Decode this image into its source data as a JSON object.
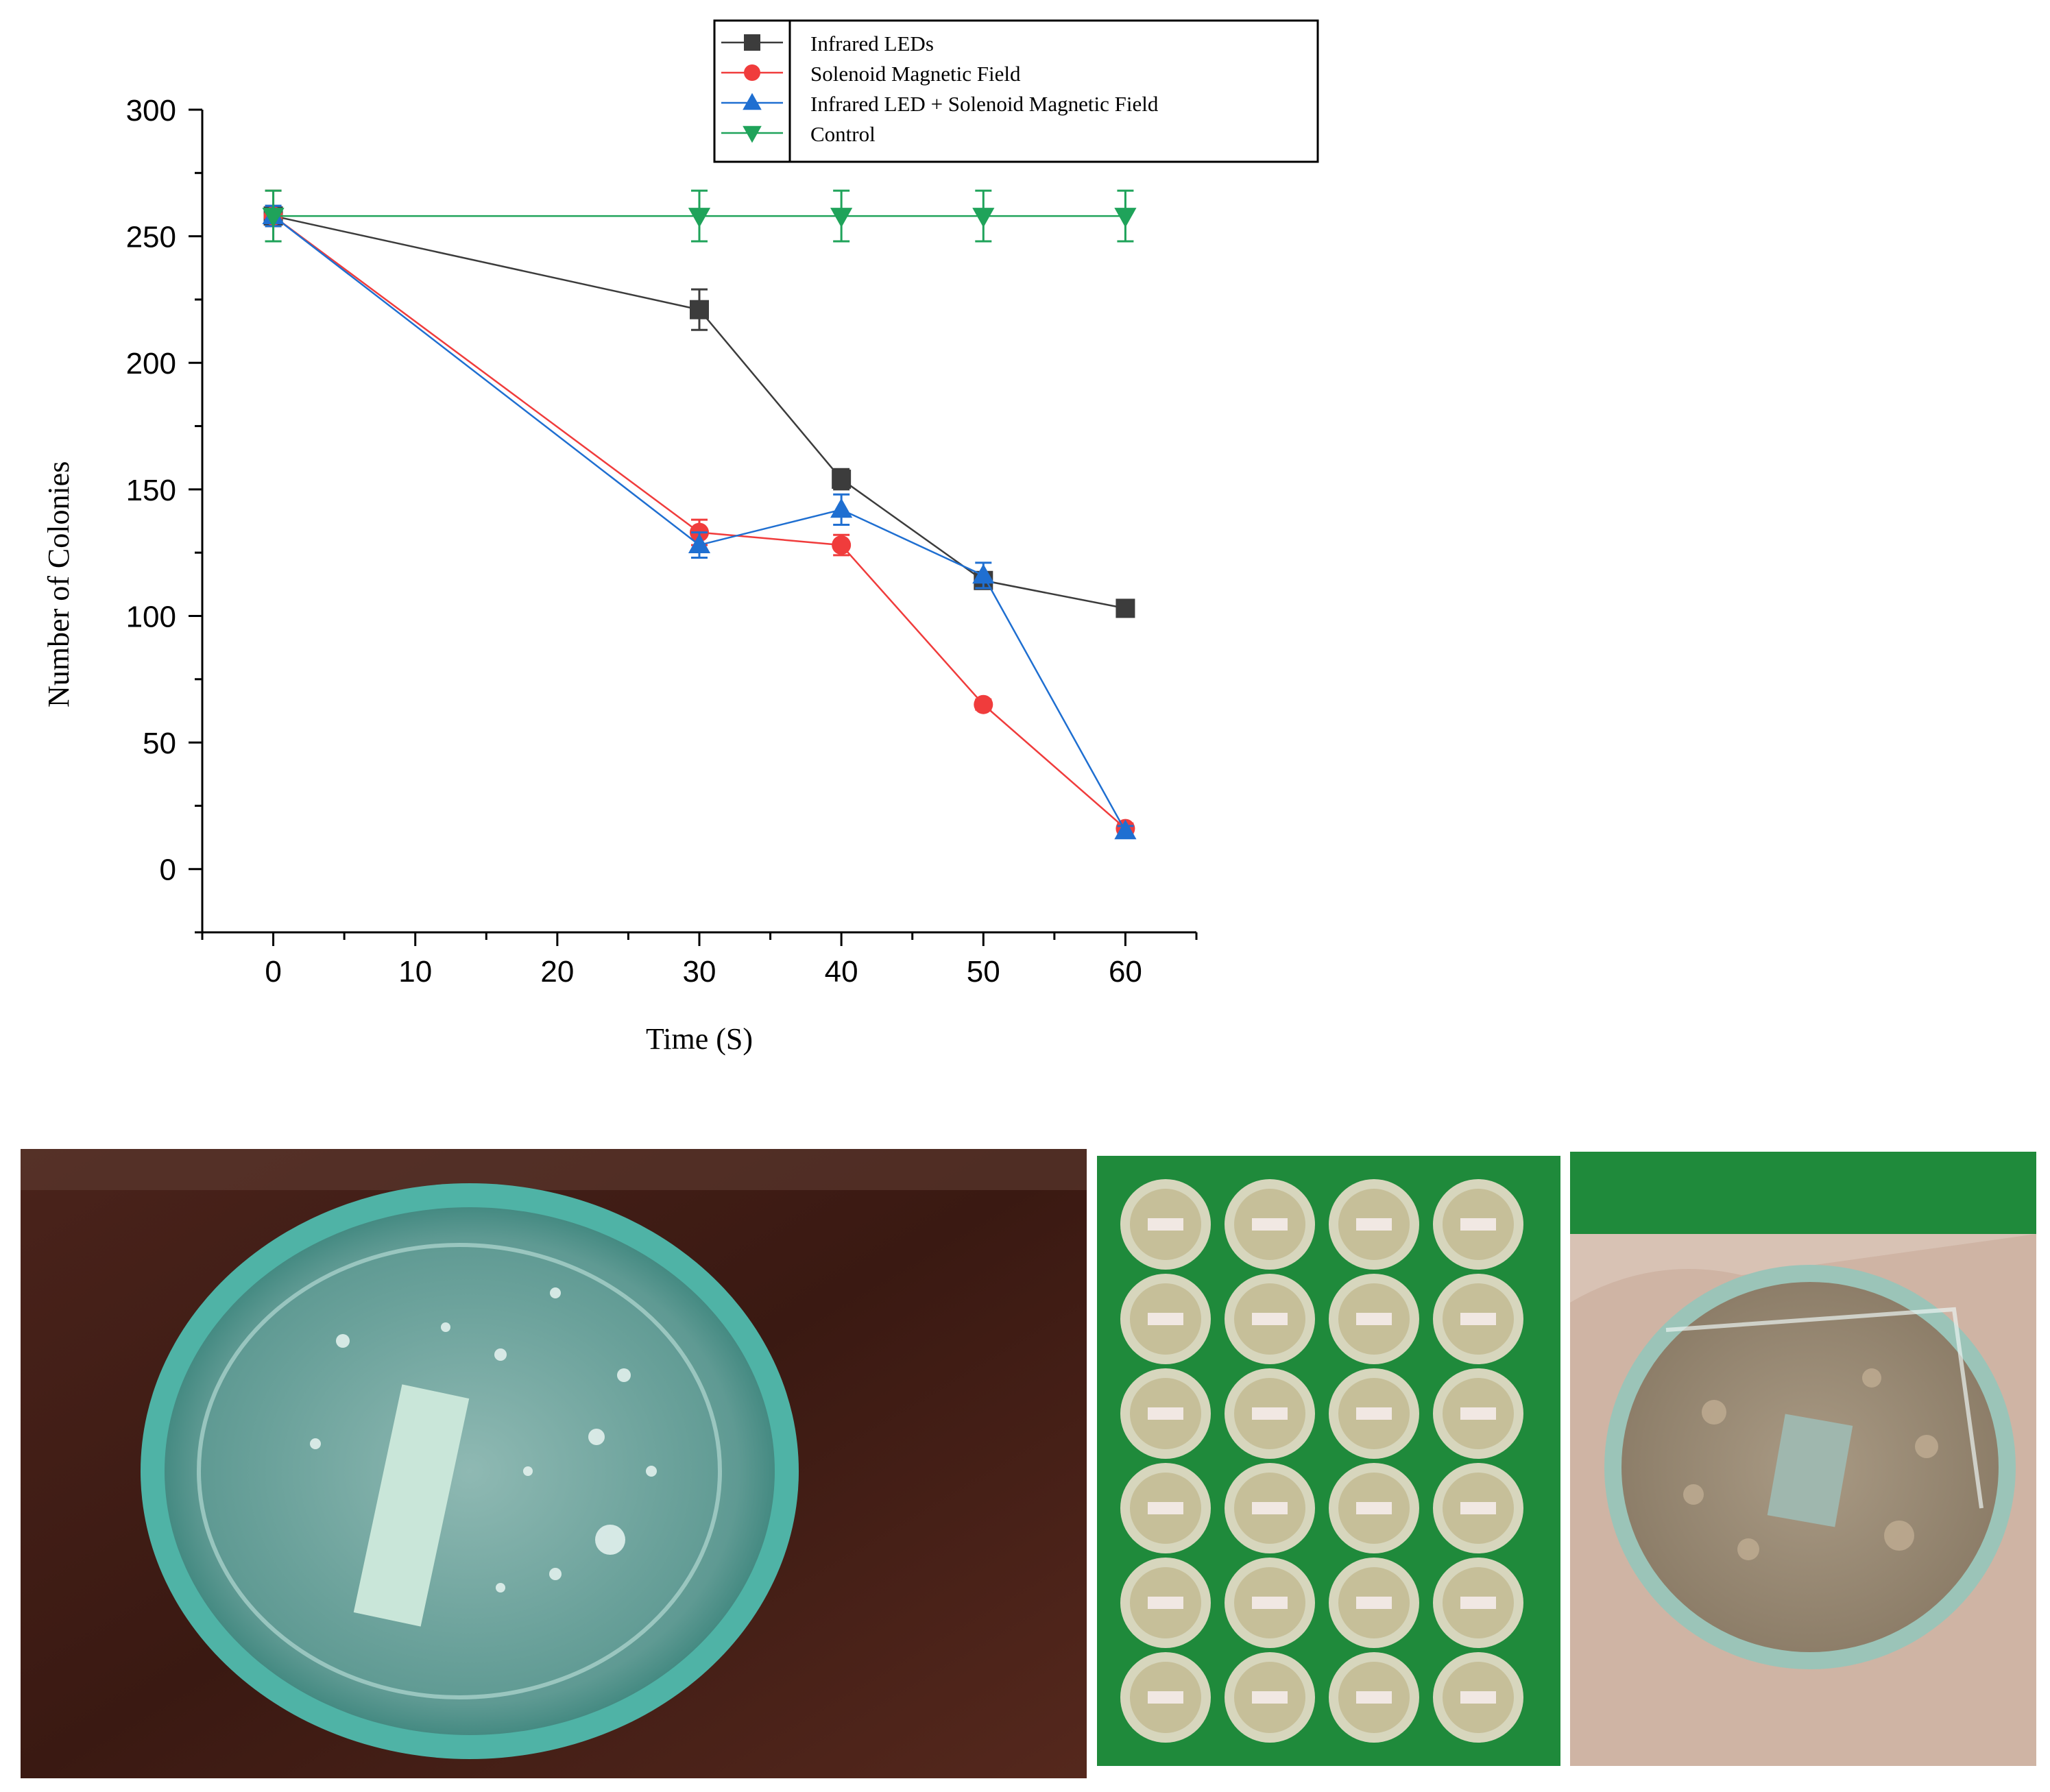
{
  "chart_data": {
    "type": "line",
    "xlabel": "Time (S)",
    "ylabel": "Number of Colonies",
    "xlim": [
      -5,
      65
    ],
    "ylim": [
      -25,
      300
    ],
    "xticks": [
      0,
      10,
      20,
      30,
      40,
      50,
      60
    ],
    "yticks": [
      0,
      50,
      100,
      150,
      200,
      250,
      300
    ],
    "legend_position": "top-right",
    "grid": false,
    "series": [
      {
        "name": "Infrared LEDs",
        "color": "#3c3c3c",
        "marker": "square",
        "x": [
          0,
          30,
          40,
          50,
          60
        ],
        "y": [
          258,
          221,
          154,
          114,
          103
        ],
        "err": [
          4,
          8,
          4,
          3,
          3
        ]
      },
      {
        "name": "Solenoid Magnetic Field",
        "color": "#f03c3c",
        "marker": "circle",
        "x": [
          0,
          30,
          40,
          50,
          60
        ],
        "y": [
          258,
          133,
          128,
          65,
          16
        ],
        "err": [
          10,
          5,
          4,
          2,
          2
        ]
      },
      {
        "name": "Infrared LED + Solenoid Magnetic Field",
        "color": "#1f6fd1",
        "marker": "triangle-up",
        "x": [
          0,
          30,
          40,
          50,
          60
        ],
        "y": [
          258,
          128,
          142,
          116,
          15
        ],
        "err": [
          4,
          5,
          6,
          5,
          2
        ]
      },
      {
        "name": "Control",
        "color": "#1fa35a",
        "marker": "triangle-down",
        "x": [
          0,
          30,
          40,
          50,
          60
        ],
        "y": [
          258,
          258,
          258,
          258,
          258
        ],
        "err": [
          10,
          10,
          10,
          10,
          10
        ]
      }
    ]
  },
  "photos": [
    {
      "subject": "petri-dish-on-wooden-table"
    },
    {
      "subject": "grid-of-sample-cups-on-green-cloth"
    },
    {
      "subject": "petri-dish-held-in-hand"
    }
  ]
}
